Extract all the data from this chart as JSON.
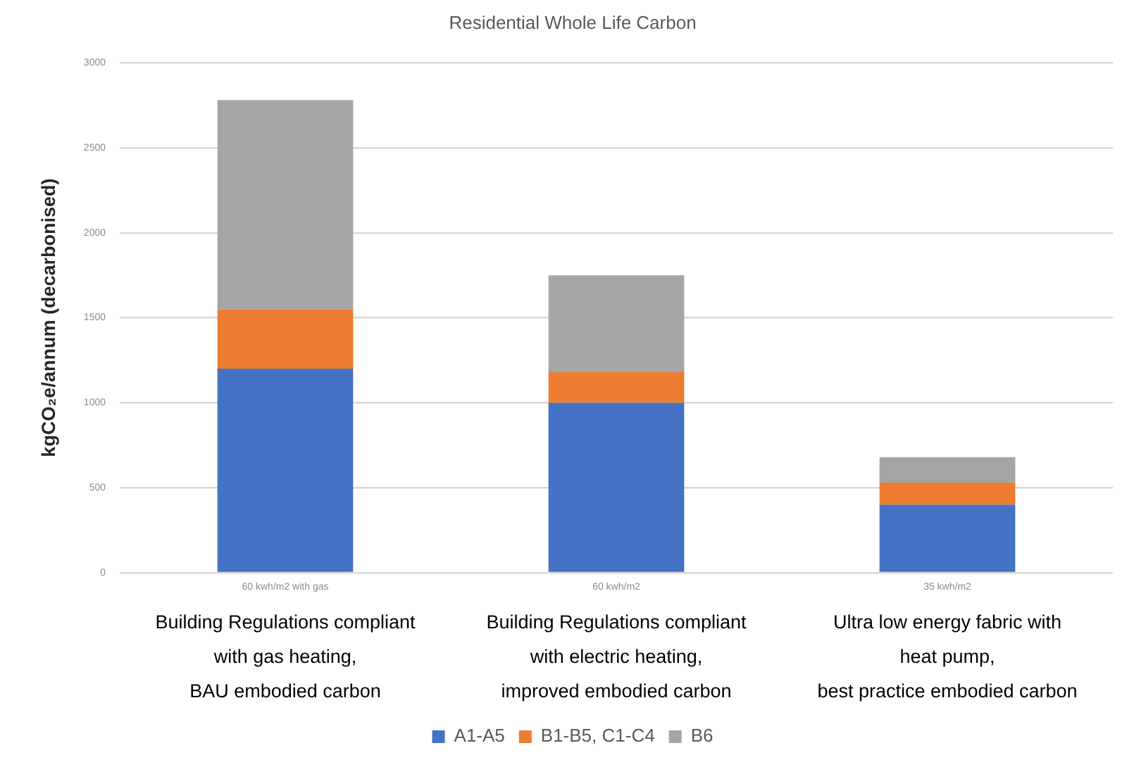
{
  "chart_data": {
    "type": "bar",
    "title": "Residential Whole Life Carbon",
    "ylabel": "kgCO₂e/annum (decarbonised)",
    "categories": [
      "60 kwh/m2 with gas",
      "60 kwh/m2",
      "35 kwh/m2"
    ],
    "stacked": true,
    "series": [
      {
        "name": "A1-A5",
        "color": "#4472c4",
        "values": [
          1200,
          1000,
          400
        ]
      },
      {
        "name": "B1-B5, C1-C4",
        "color": "#ed7d31",
        "values": [
          350,
          180,
          130
        ]
      },
      {
        "name": "B6",
        "color": "#a5a5a5",
        "values": [
          1230,
          570,
          150
        ]
      }
    ],
    "ylim": [
      0,
      3000
    ],
    "yticks": [
      0,
      500,
      1000,
      1500,
      2000,
      2500,
      3000
    ],
    "grid": "y",
    "legend": "bottom",
    "annotations": [
      "Building Regulations compliant\nwith gas heating,\nBAU embodied carbon",
      "Building Regulations compliant\nwith electric heating,\nimproved embodied carbon",
      "Ultra low energy fabric with\nheat pump,\nbest practice embodied carbon"
    ]
  }
}
